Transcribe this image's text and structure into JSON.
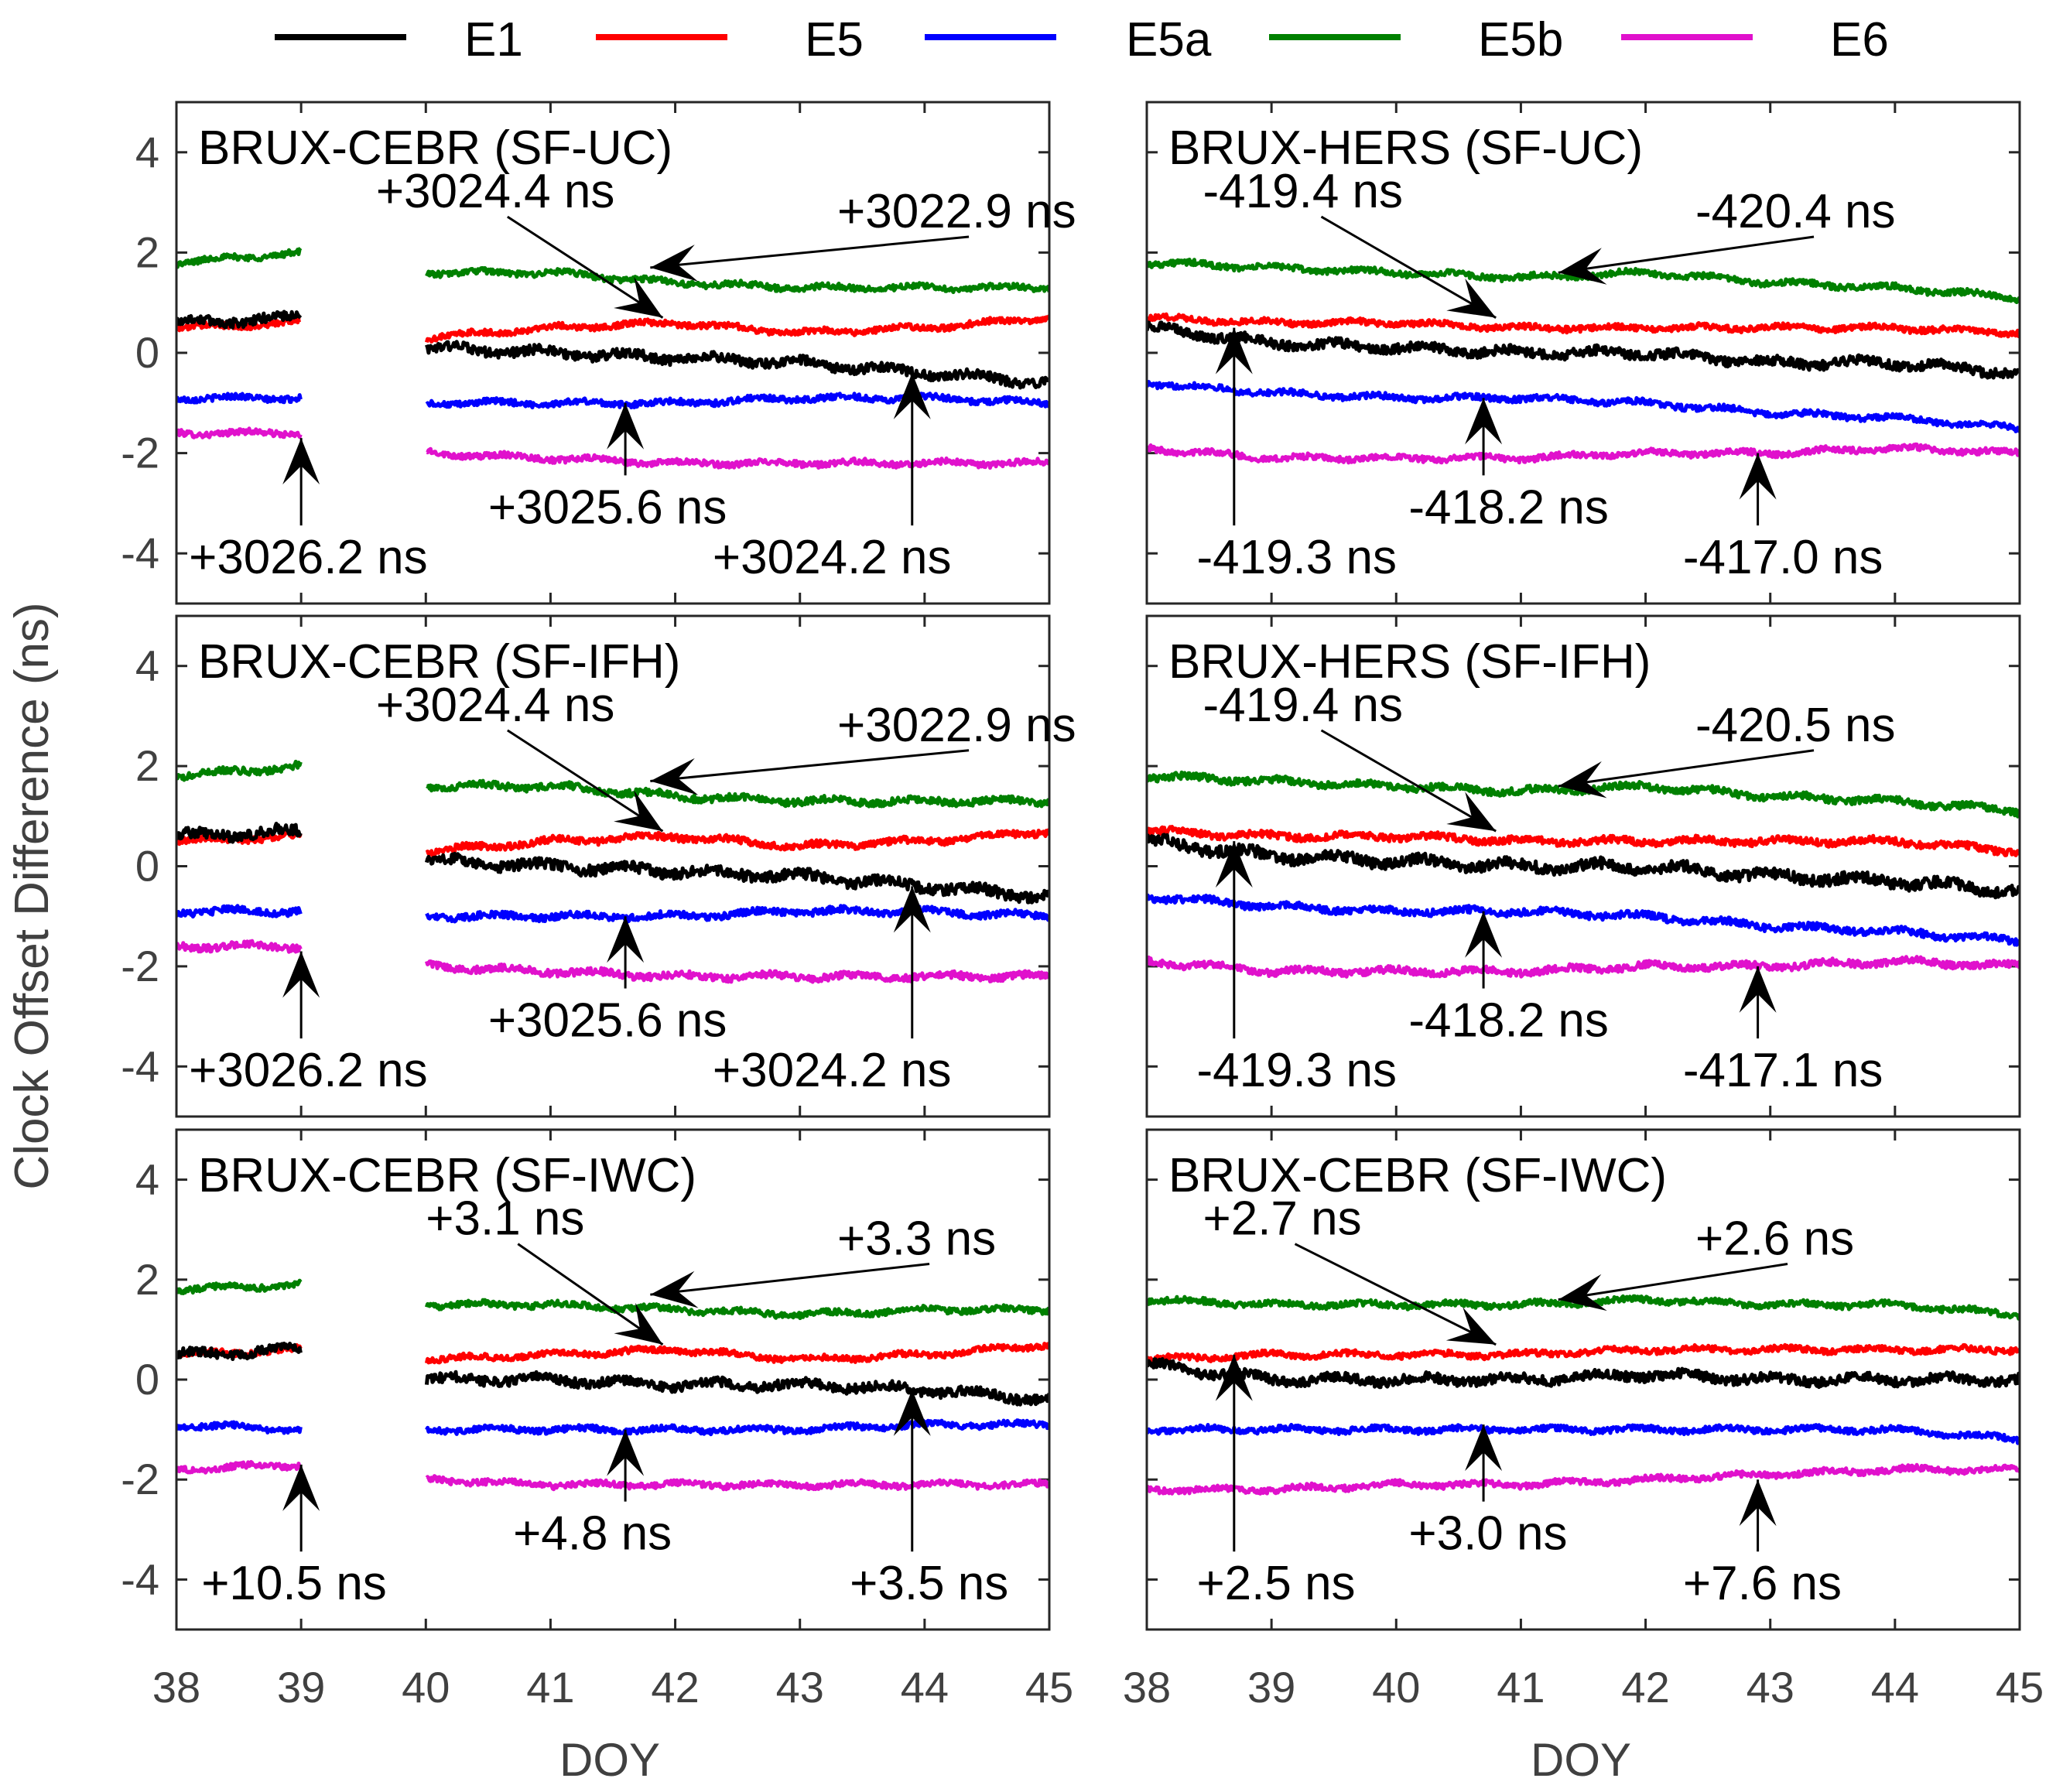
{
  "legend": [
    {
      "label": "E1",
      "color": "#000000"
    },
    {
      "label": "E5",
      "color": "#ff0000"
    },
    {
      "label": "E5a",
      "color": "#0000ff"
    },
    {
      "label": "E5b",
      "color": "#008000"
    },
    {
      "label": "E6",
      "color": "#e011cc"
    }
  ],
  "y_axis_label": "Clock Offset Difference (ns)",
  "x_axis_label": "DOY",
  "chart_data": {
    "type": "line",
    "xlim": [
      38,
      45
    ],
    "ylim": [
      -5,
      5
    ],
    "x_ticks": [
      "38",
      "39",
      "40",
      "41",
      "42",
      "43",
      "44",
      "45"
    ],
    "y_ticks": [
      "4",
      "2",
      "0",
      "-2",
      "-4"
    ],
    "panels": [
      {
        "id": "p1",
        "title": "BRUX-CEBR (SF-UC)",
        "gap": [
          39,
          40
        ],
        "noise": 0.06,
        "series": [
          {
            "name": "E1",
            "x": [
              38,
              39,
              40,
              41,
              42,
              43,
              44,
              45
            ],
            "y": [
              0.6,
              0.7,
              0.1,
              0.0,
              -0.1,
              -0.2,
              -0.4,
              -0.6
            ]
          },
          {
            "name": "E5",
            "x": [
              38,
              39,
              40,
              41,
              42,
              43,
              44,
              45
            ],
            "y": [
              0.5,
              0.6,
              0.3,
              0.5,
              0.6,
              0.4,
              0.5,
              0.7
            ]
          },
          {
            "name": "E5a",
            "x": [
              38,
              39,
              40,
              41,
              42,
              43,
              44,
              45
            ],
            "y": [
              -0.9,
              -0.9,
              -1.0,
              -1.0,
              -1.0,
              -0.9,
              -0.9,
              -1.0
            ]
          },
          {
            "name": "E5b",
            "x": [
              38,
              39,
              40,
              41,
              42,
              43,
              44,
              45
            ],
            "y": [
              1.8,
              2.0,
              1.6,
              1.6,
              1.4,
              1.3,
              1.3,
              1.3
            ]
          },
          {
            "name": "E6",
            "x": [
              38,
              39,
              40,
              41,
              42,
              43,
              44,
              45
            ],
            "y": [
              -1.6,
              -1.6,
              -2.0,
              -2.1,
              -2.2,
              -2.2,
              -2.2,
              -2.2
            ]
          }
        ],
        "annotations": [
          {
            "text": "+3024.4 ns",
            "tx": 39.6,
            "ty": 2.9,
            "ax": 41.9,
            "ay": 0.7
          },
          {
            "text": "+3022.9 ns",
            "tx": 43.3,
            "ty": 2.5,
            "ax": 41.8,
            "ay": 1.7
          },
          {
            "text": "+3026.2 ns",
            "tx": 38.1,
            "ty": -4.4,
            "ax": 39.0,
            "ay": -1.7
          },
          {
            "text": "+3025.6 ns",
            "tx": 40.5,
            "ty": -3.4,
            "ax": 41.6,
            "ay": -1.0
          },
          {
            "text": "+3024.2 ns",
            "tx": 42.3,
            "ty": -4.4,
            "ax": 43.9,
            "ay": -0.4
          }
        ]
      },
      {
        "id": "p2",
        "title": "BRUX-HERS (SF-UC)",
        "gap": null,
        "noise": 0.06,
        "series": [
          {
            "name": "E1",
            "x": [
              38,
              39,
              40,
              41,
              42,
              43,
              44,
              45
            ],
            "y": [
              0.5,
              0.2,
              0.1,
              0.0,
              0.0,
              -0.2,
              -0.2,
              -0.4
            ]
          },
          {
            "name": "E5",
            "x": [
              38,
              39,
              40,
              41,
              42,
              43,
              44,
              45
            ],
            "y": [
              0.7,
              0.6,
              0.6,
              0.5,
              0.5,
              0.5,
              0.5,
              0.4
            ]
          },
          {
            "name": "E5a",
            "x": [
              38,
              39,
              40,
              41,
              42,
              43,
              44,
              45
            ],
            "y": [
              -0.6,
              -0.8,
              -0.9,
              -0.9,
              -1.0,
              -1.2,
              -1.3,
              -1.5
            ]
          },
          {
            "name": "E5b",
            "x": [
              38,
              39,
              40,
              41,
              42,
              43,
              44,
              45
            ],
            "y": [
              1.8,
              1.7,
              1.6,
              1.5,
              1.6,
              1.4,
              1.3,
              1.1
            ]
          },
          {
            "name": "E6",
            "x": [
              38,
              39,
              40,
              41,
              42,
              43,
              44,
              45
            ],
            "y": [
              -1.9,
              -2.1,
              -2.1,
              -2.1,
              -2.0,
              -2.0,
              -1.9,
              -2.0
            ]
          }
        ],
        "annotations": [
          {
            "text": "-419.4 ns",
            "tx": 38.45,
            "ty": 2.9,
            "ax": 40.8,
            "ay": 0.7
          },
          {
            "text": "-420.4 ns",
            "tx": 42.4,
            "ty": 2.5,
            "ax": 41.3,
            "ay": 1.6
          },
          {
            "text": "-419.3 ns",
            "tx": 38.4,
            "ty": -4.4,
            "ax": 38.7,
            "ay": 0.5
          },
          {
            "text": "-418.2 ns",
            "tx": 40.1,
            "ty": -3.4,
            "ax": 40.7,
            "ay": -0.9
          },
          {
            "text": "-417.0 ns",
            "tx": 42.3,
            "ty": -4.4,
            "ax": 42.9,
            "ay": -2.0
          }
        ]
      },
      {
        "id": "p3",
        "title": "BRUX-CEBR (SF-IFH)",
        "gap": [
          39,
          40
        ],
        "noise": 0.07,
        "series": [
          {
            "name": "E1",
            "x": [
              38,
              39,
              40,
              41,
              42,
              43,
              44,
              45
            ],
            "y": [
              0.6,
              0.7,
              0.1,
              0.0,
              -0.1,
              -0.2,
              -0.4,
              -0.6
            ]
          },
          {
            "name": "E5",
            "x": [
              38,
              39,
              40,
              41,
              42,
              43,
              44,
              45
            ],
            "y": [
              0.5,
              0.6,
              0.3,
              0.5,
              0.6,
              0.4,
              0.5,
              0.7
            ]
          },
          {
            "name": "E5a",
            "x": [
              38,
              39,
              40,
              41,
              42,
              43,
              44,
              45
            ],
            "y": [
              -0.9,
              -0.9,
              -1.0,
              -1.0,
              -1.0,
              -0.9,
              -0.9,
              -1.0
            ]
          },
          {
            "name": "E5b",
            "x": [
              38,
              39,
              40,
              41,
              42,
              43,
              44,
              45
            ],
            "y": [
              1.8,
              2.0,
              1.6,
              1.6,
              1.4,
              1.3,
              1.3,
              1.3
            ]
          },
          {
            "name": "E6",
            "x": [
              38,
              39,
              40,
              41,
              42,
              43,
              44,
              45
            ],
            "y": [
              -1.6,
              -1.6,
              -2.0,
              -2.1,
              -2.2,
              -2.2,
              -2.2,
              -2.2
            ]
          }
        ],
        "annotations": [
          {
            "text": "+3024.4 ns",
            "tx": 39.6,
            "ty": 2.9,
            "ax": 41.9,
            "ay": 0.7
          },
          {
            "text": "+3022.9 ns",
            "tx": 43.3,
            "ty": 2.5,
            "ax": 41.8,
            "ay": 1.7
          },
          {
            "text": "+3026.2 ns",
            "tx": 38.1,
            "ty": -4.4,
            "ax": 39.0,
            "ay": -1.7
          },
          {
            "text": "+3025.6 ns",
            "tx": 40.5,
            "ty": -3.4,
            "ax": 41.6,
            "ay": -1.0
          },
          {
            "text": "+3024.2 ns",
            "tx": 42.3,
            "ty": -4.4,
            "ax": 43.9,
            "ay": -0.4
          }
        ]
      },
      {
        "id": "p4",
        "title": "BRUX-HERS (SF-IFH)",
        "gap": null,
        "noise": 0.07,
        "series": [
          {
            "name": "E1",
            "x": [
              38,
              39,
              40,
              41,
              42,
              43,
              44,
              45
            ],
            "y": [
              0.5,
              0.2,
              0.1,
              0.0,
              0.0,
              -0.2,
              -0.3,
              -0.5
            ]
          },
          {
            "name": "E5",
            "x": [
              38,
              39,
              40,
              41,
              42,
              43,
              44,
              45
            ],
            "y": [
              0.7,
              0.6,
              0.6,
              0.5,
              0.5,
              0.5,
              0.5,
              0.3
            ]
          },
          {
            "name": "E5a",
            "x": [
              38,
              39,
              40,
              41,
              42,
              43,
              44,
              45
            ],
            "y": [
              -0.6,
              -0.8,
              -0.9,
              -0.9,
              -1.0,
              -1.2,
              -1.3,
              -1.5
            ]
          },
          {
            "name": "E5b",
            "x": [
              38,
              39,
              40,
              41,
              42,
              43,
              44,
              45
            ],
            "y": [
              1.8,
              1.7,
              1.6,
              1.5,
              1.6,
              1.4,
              1.3,
              1.1
            ]
          },
          {
            "name": "E6",
            "x": [
              38,
              39,
              40,
              41,
              42,
              43,
              44,
              45
            ],
            "y": [
              -1.9,
              -2.1,
              -2.1,
              -2.1,
              -2.0,
              -2.0,
              -1.9,
              -2.0
            ]
          }
        ],
        "annotations": [
          {
            "text": "-419.4 ns",
            "tx": 38.45,
            "ty": 2.9,
            "ax": 40.8,
            "ay": 0.7
          },
          {
            "text": "-420.5 ns",
            "tx": 42.4,
            "ty": 2.5,
            "ax": 41.3,
            "ay": 1.6
          },
          {
            "text": "-419.3 ns",
            "tx": 38.4,
            "ty": -4.4,
            "ax": 38.7,
            "ay": 0.5
          },
          {
            "text": "-418.2 ns",
            "tx": 40.1,
            "ty": -3.4,
            "ax": 40.7,
            "ay": -0.9
          },
          {
            "text": "-417.1 ns",
            "tx": 42.3,
            "ty": -4.4,
            "ax": 42.9,
            "ay": -2.0
          }
        ]
      },
      {
        "id": "p5",
        "title": "BRUX-CEBR (SF-IWC)",
        "gap": [
          39,
          40
        ],
        "noise": 0.06,
        "series": [
          {
            "name": "E1",
            "x": [
              38,
              39,
              40,
              41,
              42,
              43,
              44,
              45
            ],
            "y": [
              0.5,
              0.6,
              0.0,
              0.0,
              -0.1,
              -0.1,
              -0.2,
              -0.4
            ]
          },
          {
            "name": "E5",
            "x": [
              38,
              39,
              40,
              41,
              42,
              43,
              44,
              45
            ],
            "y": [
              0.5,
              0.6,
              0.4,
              0.5,
              0.6,
              0.4,
              0.5,
              0.7
            ]
          },
          {
            "name": "E5a",
            "x": [
              38,
              39,
              40,
              41,
              42,
              43,
              44,
              45
            ],
            "y": [
              -0.9,
              -1.0,
              -1.0,
              -1.0,
              -1.0,
              -1.0,
              -0.9,
              -0.9
            ]
          },
          {
            "name": "E5b",
            "x": [
              38,
              39,
              40,
              41,
              42,
              43,
              44,
              45
            ],
            "y": [
              1.8,
              1.9,
              1.5,
              1.5,
              1.4,
              1.3,
              1.4,
              1.4
            ]
          },
          {
            "name": "E6",
            "x": [
              38,
              39,
              40,
              41,
              42,
              43,
              44,
              45
            ],
            "y": [
              -1.8,
              -1.7,
              -2.0,
              -2.1,
              -2.1,
              -2.1,
              -2.1,
              -2.1
            ]
          }
        ],
        "annotations": [
          {
            "text": "+3.1 ns",
            "tx": 40.0,
            "ty": 2.9,
            "ax": 41.9,
            "ay": 0.7
          },
          {
            "text": "+3.3 ns",
            "tx": 43.3,
            "ty": 2.5,
            "ax": 41.8,
            "ay": 1.7
          },
          {
            "text": "+10.5 ns",
            "tx": 38.2,
            "ty": -4.4,
            "ax": 39.0,
            "ay": -1.7
          },
          {
            "text": "+4.8 ns",
            "tx": 40.7,
            "ty": -3.4,
            "ax": 41.6,
            "ay": -1.0
          },
          {
            "text": "+3.5 ns",
            "tx": 43.4,
            "ty": -4.4,
            "ax": 43.9,
            "ay": -0.2
          }
        ]
      },
      {
        "id": "p6",
        "title": "BRUX-CEBR (SF-IWC)",
        "gap": null,
        "noise": 0.06,
        "series": [
          {
            "name": "E1",
            "x": [
              38,
              39,
              40,
              41,
              42,
              43,
              44,
              45
            ],
            "y": [
              0.3,
              0.0,
              0.0,
              0.0,
              0.1,
              0.0,
              0.0,
              0.0
            ]
          },
          {
            "name": "E5",
            "x": [
              38,
              39,
              40,
              41,
              42,
              43,
              44,
              45
            ],
            "y": [
              0.4,
              0.5,
              0.5,
              0.5,
              0.6,
              0.6,
              0.6,
              0.6
            ]
          },
          {
            "name": "E5a",
            "x": [
              38,
              39,
              40,
              41,
              42,
              43,
              44,
              45
            ],
            "y": [
              -1.0,
              -1.0,
              -1.0,
              -1.0,
              -1.0,
              -1.0,
              -1.0,
              -1.2
            ]
          },
          {
            "name": "E5b",
            "x": [
              38,
              39,
              40,
              41,
              42,
              43,
              44,
              45
            ],
            "y": [
              1.6,
              1.5,
              1.5,
              1.5,
              1.6,
              1.5,
              1.5,
              1.3
            ]
          },
          {
            "name": "E6",
            "x": [
              38,
              39,
              40,
              41,
              42,
              43,
              44,
              45
            ],
            "y": [
              -2.2,
              -2.2,
              -2.1,
              -2.1,
              -2.0,
              -1.9,
              -1.8,
              -1.8
            ]
          }
        ],
        "annotations": [
          {
            "text": "+2.7 ns",
            "tx": 38.45,
            "ty": 2.9,
            "ax": 40.8,
            "ay": 0.7
          },
          {
            "text": "+2.6 ns",
            "tx": 42.4,
            "ty": 2.5,
            "ax": 41.3,
            "ay": 1.6
          },
          {
            "text": "+2.5 ns",
            "tx": 38.4,
            "ty": -4.4,
            "ax": 38.7,
            "ay": 0.5
          },
          {
            "text": "+3.0 ns",
            "tx": 40.1,
            "ty": -3.4,
            "ax": 40.7,
            "ay": -0.9
          },
          {
            "text": "+7.6 ns",
            "tx": 42.3,
            "ty": -4.4,
            "ax": 42.9,
            "ay": -2.0
          }
        ]
      }
    ]
  }
}
